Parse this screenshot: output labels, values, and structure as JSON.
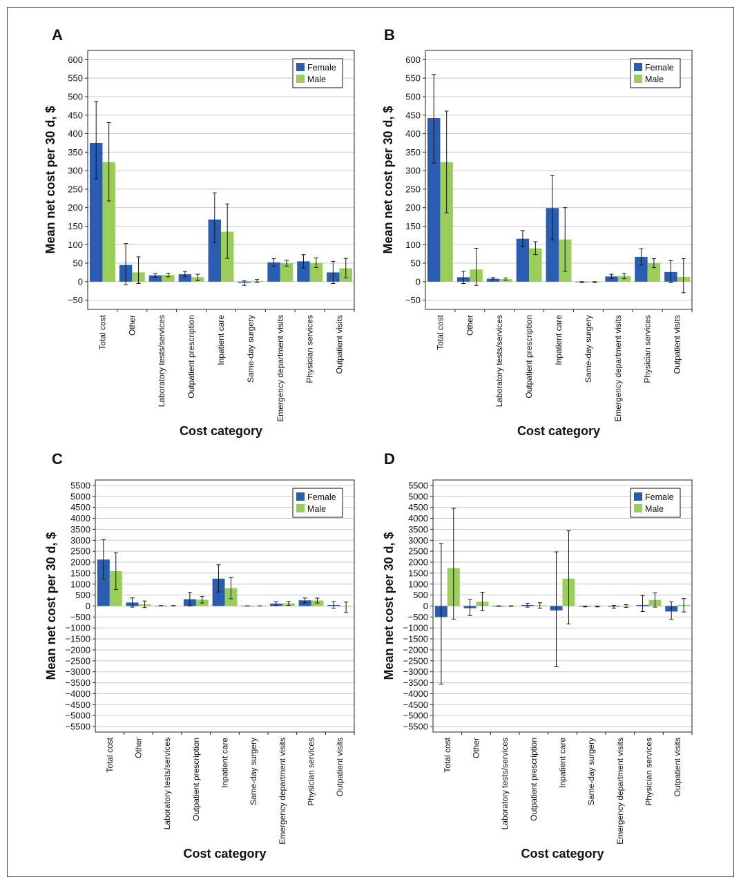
{
  "colors": {
    "female": "#2a5db0",
    "male": "#9acd5a",
    "grid": "#c8c8c8",
    "axis": "#222222"
  },
  "chart_data": [
    {
      "panel": "A",
      "type": "bar",
      "ylabel": "Mean net cost per 30 d, $",
      "xlabel": "Cost category",
      "ylim": [
        -75,
        625
      ],
      "yticks": [
        600,
        550,
        500,
        450,
        400,
        350,
        300,
        250,
        200,
        150,
        100,
        50,
        0,
        -50
      ],
      "ytick_labels": [
        "600",
        "550",
        "500",
        "450",
        "400",
        "350",
        "300",
        "250",
        "200",
        "150",
        "100",
        "50",
        "0",
        "−50"
      ],
      "grid": true,
      "legend": "top-right",
      "categories": [
        "Total cost",
        "Other",
        "Laboratory tests/services",
        "Outpatient prescription",
        "Inpatient care",
        "Same-day surgery",
        "Emergency department visits",
        "Physician services",
        "Outpatient visits"
      ],
      "series": [
        {
          "name": "Female",
          "values": [
            375,
            45,
            17,
            20,
            168,
            -3,
            52,
            55,
            25
          ],
          "err_low": [
            278,
            -8,
            12,
            13,
            105,
            -10,
            42,
            37,
            -5
          ],
          "err_high": [
            487,
            103,
            22,
            28,
            240,
            2,
            62,
            73,
            55
          ]
        },
        {
          "name": "Male",
          "values": [
            323,
            25,
            18,
            12,
            135,
            2,
            50,
            51,
            36
          ],
          "err_low": [
            218,
            -5,
            13,
            3,
            63,
            -2,
            42,
            38,
            10
          ],
          "err_high": [
            430,
            67,
            23,
            20,
            210,
            6,
            58,
            64,
            63
          ]
        }
      ]
    },
    {
      "panel": "B",
      "type": "bar",
      "ylabel": "Mean net cost per 30 d, $",
      "xlabel": "Cost category",
      "ylim": [
        -75,
        625
      ],
      "yticks": [
        600,
        550,
        500,
        450,
        400,
        350,
        300,
        250,
        200,
        150,
        100,
        50,
        0,
        -50
      ],
      "ytick_labels": [
        "600",
        "550",
        "500",
        "450",
        "400",
        "350",
        "300",
        "250",
        "200",
        "150",
        "100",
        "50",
        "0",
        "−50"
      ],
      "grid": true,
      "legend": "top-right",
      "categories": [
        "Total cost",
        "Other",
        "Laboratory tests/services",
        "Outpatient prescription",
        "Inpatient care",
        "Same-day surgery",
        "Emergency department visits",
        "Physician services",
        "Outpatient visits"
      ],
      "series": [
        {
          "name": "Female",
          "values": [
            442,
            12,
            8,
            116,
            199,
            -1,
            14,
            67,
            26
          ],
          "err_low": [
            321,
            -5,
            5,
            95,
            113,
            -2,
            8,
            45,
            -3
          ],
          "err_high": [
            560,
            28,
            11,
            138,
            287,
            0,
            20,
            89,
            57
          ]
        },
        {
          "name": "Male",
          "values": [
            323,
            33,
            7,
            90,
            114,
            -1,
            15,
            50,
            13
          ],
          "err_low": [
            186,
            -10,
            4,
            73,
            28,
            -2,
            8,
            38,
            -30
          ],
          "err_high": [
            461,
            90,
            10,
            108,
            200,
            0,
            22,
            62,
            62
          ]
        }
      ]
    },
    {
      "panel": "C",
      "type": "bar",
      "ylabel": "Mean net cost per 30 d, $",
      "xlabel": "Cost category",
      "ylim": [
        -5750,
        5750
      ],
      "yticks": [
        5500,
        5000,
        4500,
        4000,
        3500,
        3000,
        2500,
        2000,
        1500,
        1000,
        500,
        0,
        -500,
        -1000,
        -1500,
        -2000,
        -2500,
        -3000,
        -3500,
        -4000,
        -4500,
        -5000,
        -5500
      ],
      "ytick_labels": [
        "5500",
        "5000",
        "4500",
        "4000",
        "3500",
        "3000",
        "2500",
        "2000",
        "1500",
        "1000",
        "500",
        "0",
        "−500",
        "−1000",
        "−1500",
        "−2000",
        "−2500",
        "−3000",
        "−3500",
        "−4000",
        "−4500",
        "−5000",
        "−5500"
      ],
      "grid": true,
      "legend": "top-right",
      "categories": [
        "Total cost",
        "Other",
        "Laboratory tests/services",
        "Outpatient prescription",
        "Inpatient care",
        "Same-day surgery",
        "Emergency department visits",
        "Physician services",
        "Outpatient visits"
      ],
      "series": [
        {
          "name": "Female",
          "values": [
            2120,
            160,
            10,
            310,
            1250,
            5,
            110,
            260,
            50
          ],
          "err_low": [
            1230,
            -50,
            0,
            0,
            640,
            0,
            30,
            150,
            -100
          ],
          "err_high": [
            3030,
            370,
            20,
            620,
            1880,
            10,
            190,
            370,
            200
          ]
        },
        {
          "name": "Male",
          "values": [
            1590,
            80,
            10,
            290,
            820,
            5,
            120,
            250,
            0
          ],
          "err_low": [
            760,
            -70,
            0,
            140,
            330,
            0,
            30,
            140,
            -300
          ],
          "err_high": [
            2430,
            230,
            20,
            440,
            1300,
            10,
            200,
            360,
            180
          ]
        }
      ]
    },
    {
      "panel": "D",
      "type": "bar",
      "ylabel": "Mean net cost per 30 d, $",
      "xlabel": "Cost category",
      "ylim": [
        -5750,
        5750
      ],
      "yticks": [
        5500,
        5000,
        4500,
        4000,
        3500,
        3000,
        2500,
        2000,
        1500,
        1000,
        500,
        0,
        -500,
        -1000,
        -1500,
        -2000,
        -2500,
        -3000,
        -3500,
        -4000,
        -4500,
        -5000,
        -5500
      ],
      "ytick_labels": [
        "5500",
        "5000",
        "4500",
        "4000",
        "3500",
        "3000",
        "2500",
        "2000",
        "1500",
        "1000",
        "500",
        "0",
        "−500",
        "−1000",
        "−1500",
        "−2000",
        "−2500",
        "−3000",
        "−3500",
        "−4000",
        "−4500",
        "−5000",
        "−5500"
      ],
      "grid": true,
      "legend": "top-right",
      "categories": [
        "Total cost",
        "Other",
        "Laboratory tests/services",
        "Outpatient prescription",
        "Inpatient care",
        "Same-day surgery",
        "Emergency department visits",
        "Physician services",
        "Outpatient visits"
      ],
      "series": [
        {
          "name": "Female",
          "values": [
            -500,
            -100,
            0,
            50,
            -200,
            -20,
            -30,
            50,
            -250
          ],
          "err_low": [
            -3560,
            -430,
            -10,
            -50,
            -2770,
            -40,
            -100,
            -250,
            -610
          ],
          "err_high": [
            2850,
            300,
            10,
            130,
            2470,
            0,
            30,
            480,
            190
          ]
        },
        {
          "name": "Male",
          "values": [
            1730,
            200,
            0,
            30,
            1250,
            -20,
            0,
            280,
            50
          ],
          "err_low": [
            -600,
            -220,
            -10,
            -100,
            -820,
            -40,
            -60,
            -50,
            -270
          ],
          "err_high": [
            4460,
            630,
            10,
            150,
            3430,
            0,
            60,
            600,
            340
          ]
        }
      ]
    }
  ]
}
